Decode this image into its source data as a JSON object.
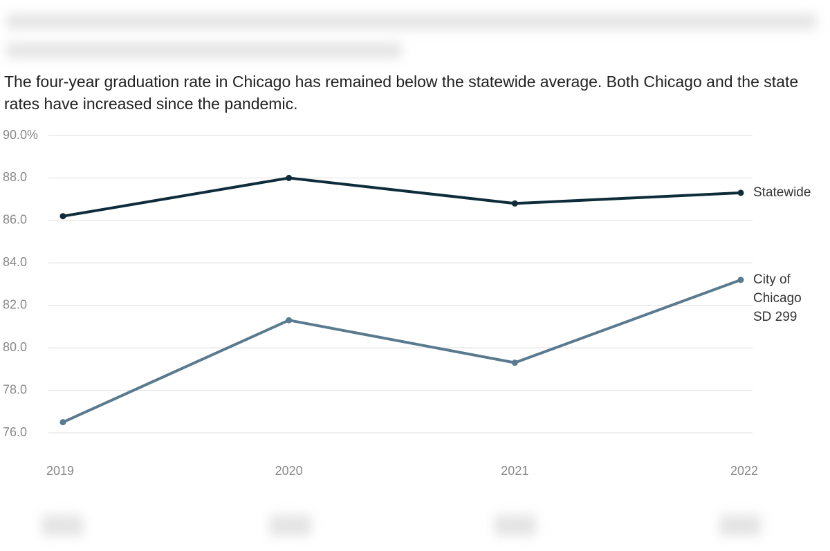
{
  "chart_data": {
    "type": "line",
    "title": "The four-year graduation rate in Chicago has remained below the statewide average. Both Chicago and the state rates have increased since the pandemic.",
    "categories": [
      "2019",
      "2020",
      "2021",
      "2022"
    ],
    "series": [
      {
        "name": "Statewide",
        "color": "#0f2c3b",
        "values": [
          86.2,
          88.0,
          86.8,
          87.3
        ]
      },
      {
        "name": "City of Chicago SD 299",
        "color": "#5a7a8f",
        "values": [
          76.5,
          81.3,
          79.3,
          83.2
        ]
      }
    ],
    "ylim": [
      76,
      90
    ],
    "yticks": [
      {
        "value": 76,
        "label": "76.0"
      },
      {
        "value": 78,
        "label": "78.0"
      },
      {
        "value": 80,
        "label": "80.0"
      },
      {
        "value": 82,
        "label": "82.0"
      },
      {
        "value": 84,
        "label": "84.0"
      },
      {
        "value": 86,
        "label": "86.0"
      },
      {
        "value": 88,
        "label": "88.0"
      },
      {
        "value": 90,
        "label": "90.0%"
      }
    ],
    "grid": true
  }
}
